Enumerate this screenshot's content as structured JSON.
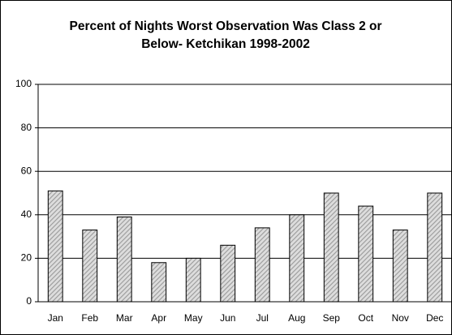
{
  "chart_data": {
    "type": "bar",
    "title": "Percent of Nights Worst Observation Was Class 2 or Below- Ketchikan 1998-2002",
    "categories": [
      "Jan",
      "Feb",
      "Mar",
      "Apr",
      "May",
      "Jun",
      "Jul",
      "Aug",
      "Sep",
      "Oct",
      "Nov",
      "Dec"
    ],
    "values": [
      51,
      33,
      39,
      18,
      20,
      26,
      34,
      40,
      50,
      44,
      33,
      50
    ],
    "color": "#9a9a9a",
    "ylim": [
      0,
      100
    ],
    "yticks": [
      0,
      20,
      40,
      60,
      80,
      100
    ],
    "grid": true
  }
}
